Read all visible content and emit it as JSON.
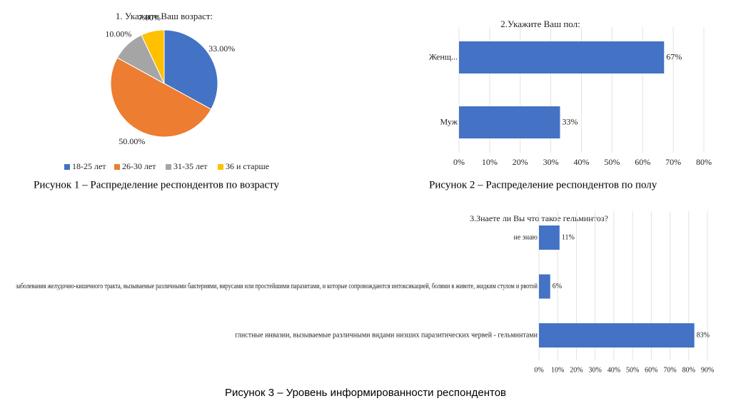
{
  "chart_data": [
    {
      "type": "pie",
      "title": "1. Укажите Ваш возраст:",
      "caption": "Рисунок 1 – Распределение респондентов по возрасту",
      "categories": [
        "18-25 лет",
        "26-30 лет",
        "31-35 лет",
        "36 и старше"
      ],
      "values": [
        33,
        50,
        10,
        7
      ],
      "value_labels": [
        "33.00%",
        "50.00%",
        "10.00%",
        "7.00%"
      ],
      "colors": [
        "#4472c4",
        "#ed7d31",
        "#a5a5a5",
        "#ffc000"
      ],
      "legend": "bottom"
    },
    {
      "type": "hbar",
      "title": "2.Укажите Ваш пол:",
      "caption": "Рисунок 2 – Распределение респондентов по полу",
      "categories": [
        "Женщ...",
        "Муж"
      ],
      "values": [
        67,
        33
      ],
      "value_labels": [
        "67%",
        "33%"
      ],
      "color": "#4472c4",
      "xlim": [
        0,
        80
      ],
      "xticks": [
        {
          "value": 0,
          "label": "0%"
        },
        {
          "value": 10,
          "label": "10%"
        },
        {
          "value": 20,
          "label": "20%"
        },
        {
          "value": 30,
          "label": "30%"
        },
        {
          "value": 40,
          "label": "40%"
        },
        {
          "value": 50,
          "label": "50%"
        },
        {
          "value": 60,
          "label": "60%"
        },
        {
          "value": 70,
          "label": "70%"
        },
        {
          "value": 80,
          "label": "80%"
        }
      ],
      "grid": true
    },
    {
      "type": "hbar",
      "title": "3.Знаете ли Вы что такое гельминтоз?",
      "caption": "Рисунок 3 – Уровень информированности респондентов",
      "categories": [
        "не знаю",
        "заболевания желудочно-кишечного тракта, вызываемые различными бактериями, вирусами или простейшими паразитами, и которые сопровождаются интоксикацией, болями в животе, жидким стулом и рвотой",
        "глистные инвазии, вызываемые различными видами низших паразитических червей - гельминтами"
      ],
      "values": [
        11,
        6,
        83
      ],
      "value_labels": [
        "11%",
        "6%",
        "83%"
      ],
      "color": "#4472c4",
      "xlim": [
        0,
        90
      ],
      "xticks": [
        {
          "value": 0,
          "label": "0%"
        },
        {
          "value": 10,
          "label": "10%"
        },
        {
          "value": 20,
          "label": "20%"
        },
        {
          "value": 30,
          "label": "30%"
        },
        {
          "value": 40,
          "label": "40%"
        },
        {
          "value": 50,
          "label": "50%"
        },
        {
          "value": 60,
          "label": "60%"
        },
        {
          "value": 70,
          "label": "70%"
        },
        {
          "value": 80,
          "label": "80%"
        },
        {
          "value": 90,
          "label": "90%"
        }
      ],
      "grid": true
    }
  ]
}
